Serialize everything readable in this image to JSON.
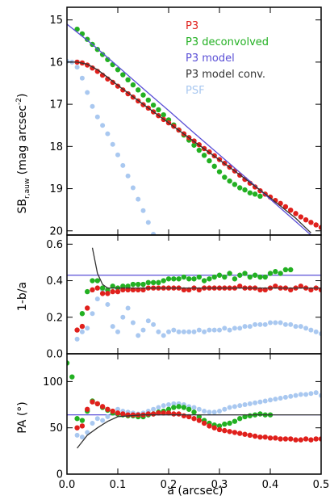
{
  "chart_data": [
    {
      "type": "scatter",
      "panel": "top",
      "ylabel": "SB_r,auw (mag arcsec^-2)",
      "ylabel_main": "SB",
      "ylabel_sub": "r,auw",
      "ylabel_rest": " (mag arcsec",
      "ylabel_sup": "-2",
      "ylabel_end": ")",
      "xlim": [
        0.0,
        0.5
      ],
      "ylim": [
        20.1,
        14.7
      ],
      "y_inverted": true,
      "yticks": [
        "15",
        "16",
        "17",
        "18",
        "19",
        "20"
      ],
      "yticks_values": [
        15,
        16,
        17,
        18,
        19,
        20
      ],
      "legend": {
        "position": "top-right",
        "entries": [
          {
            "label": "P3",
            "color": "#e0201c"
          },
          {
            "label": "P3 deconvolved",
            "color": "#22b022"
          },
          {
            "label": "P3 model",
            "color": "#5a4fd6"
          },
          {
            "label": "P3 model conv.",
            "color": "#333333"
          },
          {
            "label": "PSF",
            "color": "#a9c8f0"
          }
        ]
      },
      "series": [
        {
          "name": "P3",
          "color": "#e0201c",
          "kind": "points",
          "x": [
            0.02,
            0.03,
            0.04,
            0.05,
            0.06,
            0.07,
            0.08,
            0.09,
            0.1,
            0.11,
            0.12,
            0.13,
            0.14,
            0.15,
            0.16,
            0.17,
            0.18,
            0.19,
            0.2,
            0.21,
            0.22,
            0.23,
            0.24,
            0.25,
            0.26,
            0.27,
            0.28,
            0.29,
            0.3,
            0.31,
            0.32,
            0.33,
            0.34,
            0.35,
            0.36,
            0.37,
            0.38,
            0.39,
            0.4,
            0.41,
            0.42,
            0.43,
            0.44,
            0.45,
            0.46,
            0.47,
            0.48,
            0.49,
            0.5
          ],
          "y": [
            16.0,
            16.02,
            16.07,
            16.14,
            16.22,
            16.31,
            16.4,
            16.48,
            16.57,
            16.66,
            16.75,
            16.83,
            16.92,
            17.01,
            17.09,
            17.18,
            17.27,
            17.36,
            17.44,
            17.52,
            17.61,
            17.7,
            17.79,
            17.87,
            17.96,
            18.05,
            18.13,
            18.22,
            18.31,
            18.4,
            18.49,
            18.58,
            18.68,
            18.78,
            18.87,
            18.96,
            19.05,
            19.13,
            19.2,
            19.28,
            19.35,
            19.43,
            19.51,
            19.59,
            19.67,
            19.74,
            19.8,
            19.86,
            19.92
          ]
        },
        {
          "name": "P3 deconvolved",
          "color": "#22b022",
          "kind": "points",
          "x": [
            0.02,
            0.03,
            0.04,
            0.05,
            0.06,
            0.07,
            0.08,
            0.09,
            0.1,
            0.11,
            0.12,
            0.13,
            0.14,
            0.15,
            0.16,
            0.17,
            0.18,
            0.19,
            0.2,
            0.21,
            0.22,
            0.23,
            0.24,
            0.25,
            0.26,
            0.27,
            0.28,
            0.29,
            0.3,
            0.31,
            0.32,
            0.33,
            0.34,
            0.35,
            0.36,
            0.37,
            0.38
          ],
          "y": [
            15.22,
            15.33,
            15.46,
            15.58,
            15.7,
            15.82,
            15.94,
            16.06,
            16.18,
            16.3,
            16.42,
            16.54,
            16.66,
            16.78,
            16.9,
            17.02,
            17.13,
            17.25,
            17.37,
            17.49,
            17.61,
            17.73,
            17.85,
            17.97,
            18.09,
            18.21,
            18.34,
            18.47,
            18.6,
            18.73,
            18.82,
            18.9,
            18.98,
            19.03,
            19.1,
            19.13,
            19.18
          ]
        },
        {
          "name": "PSF",
          "color": "#a9c8f0",
          "kind": "points",
          "x": [
            0.0,
            0.01,
            0.02,
            0.03,
            0.04,
            0.05,
            0.06,
            0.07,
            0.08,
            0.09,
            0.1,
            0.11,
            0.12,
            0.13,
            0.14,
            0.15,
            0.16,
            0.17
          ],
          "y": [
            15.98,
            16.0,
            16.12,
            16.38,
            16.72,
            17.05,
            17.3,
            17.5,
            17.7,
            17.95,
            18.2,
            18.45,
            18.7,
            18.98,
            19.25,
            19.52,
            19.8,
            20.08
          ]
        },
        {
          "name": "P3 model",
          "color": "#5a4fd6",
          "kind": "line",
          "x": [
            0.0,
            0.05,
            0.1,
            0.15,
            0.2,
            0.25,
            0.3,
            0.35,
            0.4,
            0.45,
            0.48
          ],
          "y": [
            15.1,
            15.58,
            16.1,
            16.63,
            17.15,
            17.68,
            18.2,
            18.72,
            19.25,
            19.78,
            20.1
          ]
        },
        {
          "name": "P3 model conv.",
          "color": "#333333",
          "kind": "line",
          "x": [
            0.0,
            0.02,
            0.04,
            0.06,
            0.08,
            0.1,
            0.15,
            0.2,
            0.25,
            0.3,
            0.35,
            0.4,
            0.45,
            0.48
          ],
          "y": [
            16.0,
            16.0,
            16.05,
            16.18,
            16.36,
            16.55,
            17.0,
            17.44,
            17.88,
            18.32,
            18.76,
            19.22,
            19.7,
            20.05
          ]
        }
      ]
    },
    {
      "type": "scatter",
      "panel": "middle",
      "ylabel": "1-b/a",
      "xlim": [
        0.0,
        0.5
      ],
      "ylim": [
        0.0,
        0.65
      ],
      "yticks": [
        "0.0",
        "0.2",
        "0.4",
        "0.6"
      ],
      "yticks_values": [
        0.0,
        0.2,
        0.4,
        0.6
      ],
      "hline": {
        "y": 0.43,
        "color": "#5a4fd6"
      },
      "series": [
        {
          "name": "P3",
          "color": "#e0201c",
          "kind": "points",
          "x": [
            0.02,
            0.03,
            0.04,
            0.05,
            0.06,
            0.07,
            0.08,
            0.09,
            0.1,
            0.11,
            0.12,
            0.13,
            0.14,
            0.15,
            0.16,
            0.17,
            0.18,
            0.19,
            0.2,
            0.21,
            0.22,
            0.23,
            0.24,
            0.25,
            0.26,
            0.27,
            0.28,
            0.29,
            0.3,
            0.31,
            0.32,
            0.33,
            0.34,
            0.35,
            0.36,
            0.37,
            0.38,
            0.39,
            0.4,
            0.41,
            0.42,
            0.43,
            0.44,
            0.45,
            0.46,
            0.47,
            0.48,
            0.49,
            0.5
          ],
          "y": [
            0.13,
            0.15,
            0.25,
            0.35,
            0.36,
            0.33,
            0.33,
            0.34,
            0.34,
            0.35,
            0.35,
            0.35,
            0.35,
            0.35,
            0.36,
            0.36,
            0.36,
            0.36,
            0.36,
            0.36,
            0.36,
            0.35,
            0.35,
            0.36,
            0.35,
            0.36,
            0.36,
            0.36,
            0.36,
            0.36,
            0.36,
            0.36,
            0.37,
            0.36,
            0.36,
            0.36,
            0.35,
            0.35,
            0.36,
            0.37,
            0.36,
            0.36,
            0.35,
            0.36,
            0.37,
            0.36,
            0.35,
            0.36,
            0.35
          ]
        },
        {
          "name": "P3 deconvolved",
          "color": "#22b022",
          "kind": "points",
          "x": [
            0.03,
            0.04,
            0.05,
            0.06,
            0.07,
            0.08,
            0.09,
            0.1,
            0.11,
            0.12,
            0.13,
            0.14,
            0.15,
            0.16,
            0.17,
            0.18,
            0.19,
            0.2,
            0.21,
            0.22,
            0.23,
            0.24,
            0.25,
            0.26,
            0.27,
            0.28,
            0.29,
            0.3,
            0.31,
            0.32,
            0.33,
            0.34,
            0.35,
            0.36,
            0.37,
            0.38,
            0.39,
            0.4,
            0.41,
            0.42,
            0.43,
            0.44
          ],
          "y": [
            0.22,
            0.34,
            0.4,
            0.4,
            0.36,
            0.35,
            0.37,
            0.36,
            0.37,
            0.37,
            0.38,
            0.38,
            0.38,
            0.39,
            0.39,
            0.39,
            0.4,
            0.41,
            0.41,
            0.41,
            0.42,
            0.41,
            0.41,
            0.42,
            0.4,
            0.41,
            0.42,
            0.43,
            0.42,
            0.44,
            0.41,
            0.43,
            0.44,
            0.42,
            0.43,
            0.42,
            0.42,
            0.44,
            0.45,
            0.44,
            0.46,
            0.46
          ]
        },
        {
          "name": "PSF",
          "color": "#a9c8f0",
          "kind": "points",
          "x": [
            0.02,
            0.03,
            0.04,
            0.05,
            0.06,
            0.07,
            0.08,
            0.09,
            0.1,
            0.11,
            0.12,
            0.13,
            0.14,
            0.15,
            0.16,
            0.17,
            0.18,
            0.19,
            0.2,
            0.21,
            0.22,
            0.23,
            0.24,
            0.25,
            0.26,
            0.27,
            0.28,
            0.29,
            0.3,
            0.31,
            0.32,
            0.33,
            0.34,
            0.35,
            0.36,
            0.37,
            0.38,
            0.39,
            0.4,
            0.41,
            0.42,
            0.43,
            0.44,
            0.45,
            0.46,
            0.47,
            0.48,
            0.49,
            0.5
          ],
          "y": [
            0.08,
            0.12,
            0.14,
            0.22,
            0.3,
            0.35,
            0.27,
            0.15,
            0.12,
            0.2,
            0.25,
            0.17,
            0.1,
            0.13,
            0.18,
            0.16,
            0.12,
            0.1,
            0.12,
            0.13,
            0.12,
            0.12,
            0.12,
            0.12,
            0.13,
            0.12,
            0.13,
            0.13,
            0.13,
            0.14,
            0.13,
            0.14,
            0.14,
            0.15,
            0.15,
            0.16,
            0.16,
            0.16,
            0.17,
            0.17,
            0.17,
            0.16,
            0.16,
            0.15,
            0.15,
            0.14,
            0.13,
            0.12,
            0.11
          ]
        },
        {
          "name": "P3 model conv.",
          "color": "#333333",
          "kind": "line",
          "x": [
            0.05,
            0.06,
            0.07,
            0.08,
            0.1,
            0.15,
            0.2,
            0.25,
            0.3,
            0.35,
            0.4,
            0.45,
            0.5
          ],
          "y": [
            0.58,
            0.44,
            0.38,
            0.36,
            0.36,
            0.36,
            0.36,
            0.36,
            0.36,
            0.36,
            0.36,
            0.36,
            0.36
          ]
        }
      ]
    },
    {
      "type": "scatter",
      "panel": "bottom",
      "ylabel": "PA (°)",
      "xlabel": "a (arcsec)",
      "xlim": [
        0.0,
        0.5
      ],
      "ylim": [
        0,
        130
      ],
      "xticks": [
        "0.0",
        "0.1",
        "0.2",
        "0.3",
        "0.4",
        "0.5"
      ],
      "xticks_values": [
        0.0,
        0.1,
        0.2,
        0.3,
        0.4,
        0.5
      ],
      "yticks": [
        "0",
        "50",
        "100"
      ],
      "yticks_values": [
        0,
        50,
        100
      ],
      "hline": {
        "y": 64,
        "color": "#5a4fd6"
      },
      "series": [
        {
          "name": "P3",
          "color": "#e0201c",
          "kind": "points",
          "x": [
            0.02,
            0.03,
            0.04,
            0.05,
            0.06,
            0.07,
            0.08,
            0.09,
            0.1,
            0.11,
            0.12,
            0.13,
            0.14,
            0.15,
            0.16,
            0.17,
            0.18,
            0.19,
            0.2,
            0.21,
            0.22,
            0.23,
            0.24,
            0.25,
            0.26,
            0.27,
            0.28,
            0.29,
            0.3,
            0.31,
            0.32,
            0.33,
            0.34,
            0.35,
            0.36,
            0.37,
            0.38,
            0.39,
            0.4,
            0.41,
            0.42,
            0.43,
            0.44,
            0.45,
            0.46,
            0.47,
            0.48,
            0.49,
            0.5
          ],
          "y": [
            50,
            52,
            70,
            78,
            76,
            73,
            70,
            68,
            66,
            65,
            64,
            64,
            64,
            64,
            65,
            65,
            66,
            66,
            66,
            65,
            65,
            63,
            62,
            60,
            58,
            55,
            52,
            50,
            48,
            47,
            46,
            45,
            44,
            43,
            42,
            41,
            40,
            40,
            39,
            39,
            38,
            38,
            38,
            37,
            37,
            38,
            37,
            38,
            38
          ]
        },
        {
          "name": "P3 deconvolved",
          "color": "#22b022",
          "kind": "points",
          "x": [
            0.0,
            0.01,
            0.02,
            0.03,
            0.04,
            0.05,
            0.06,
            0.07,
            0.08,
            0.09,
            0.1,
            0.11,
            0.12,
            0.13,
            0.14,
            0.15,
            0.16,
            0.17,
            0.18,
            0.19,
            0.2,
            0.21,
            0.22,
            0.23,
            0.24,
            0.25,
            0.26,
            0.27,
            0.28,
            0.29,
            0.3,
            0.31,
            0.32,
            0.33,
            0.34,
            0.35,
            0.36,
            0.37,
            0.38,
            0.39,
            0.4
          ],
          "y": [
            120,
            105,
            60,
            58,
            68,
            79,
            76,
            72,
            69,
            66,
            65,
            64,
            63,
            63,
            62,
            62,
            64,
            65,
            67,
            68,
            70,
            72,
            73,
            72,
            70,
            67,
            62,
            58,
            55,
            53,
            52,
            54,
            55,
            57,
            60,
            62,
            63,
            64,
            65,
            64,
            64
          ]
        },
        {
          "name": "PSF",
          "color": "#a9c8f0",
          "kind": "points",
          "x": [
            0.02,
            0.03,
            0.04,
            0.05,
            0.06,
            0.07,
            0.08,
            0.09,
            0.1,
            0.11,
            0.12,
            0.13,
            0.14,
            0.15,
            0.16,
            0.17,
            0.18,
            0.19,
            0.2,
            0.21,
            0.22,
            0.23,
            0.24,
            0.25,
            0.26,
            0.27,
            0.28,
            0.29,
            0.3,
            0.31,
            0.32,
            0.33,
            0.34,
            0.35,
            0.36,
            0.37,
            0.38,
            0.39,
            0.4,
            0.41,
            0.42,
            0.43,
            0.44,
            0.45,
            0.46,
            0.47,
            0.48,
            0.49,
            0.5
          ],
          "y": [
            42,
            40,
            45,
            55,
            60,
            58,
            62,
            66,
            70,
            68,
            67,
            66,
            65,
            66,
            68,
            70,
            72,
            74,
            75,
            76,
            76,
            75,
            73,
            72,
            70,
            68,
            67,
            67,
            68,
            70,
            72,
            73,
            74,
            75,
            76,
            77,
            78,
            79,
            80,
            81,
            82,
            83,
            84,
            85,
            86,
            86,
            87,
            88,
            85
          ]
        },
        {
          "name": "P3 model conv.",
          "color": "#333333",
          "kind": "line",
          "x": [
            0.02,
            0.04,
            0.06,
            0.08,
            0.1,
            0.15,
            0.2,
            0.25,
            0.3,
            0.35,
            0.4,
            0.45,
            0.5
          ],
          "y": [
            28,
            42,
            50,
            57,
            62,
            64,
            64,
            64,
            64,
            64,
            64,
            64,
            64
          ]
        }
      ]
    }
  ]
}
